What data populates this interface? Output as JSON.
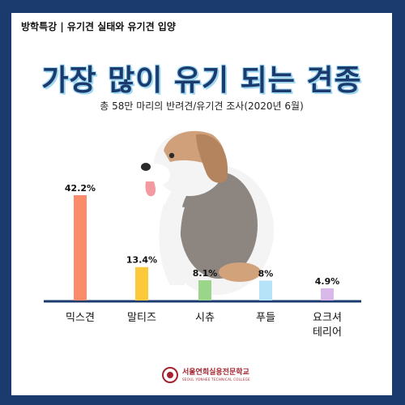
{
  "header": {
    "tag": "방학특강 | 유기견 실태와 유기견 입양"
  },
  "title": "가장 많이 유기 되는 견종",
  "subtitle": "총 58만 마리의 반려견/유기견 조사(2020년 6월)",
  "footer": {
    "school_ko": "서울연희실용전문학교",
    "school_en": "SEOUL YONHEE TECHNICAL COLLEGE"
  },
  "chart_data": {
    "type": "bar",
    "categories": [
      "믹스견",
      "말티즈",
      "시츄",
      "푸들",
      "요크셔\n테리어"
    ],
    "values": [
      42.2,
      13.4,
      8.1,
      8,
      4.9
    ],
    "value_labels": [
      "42.2%",
      "13.4%",
      "8.1%",
      "8%",
      "4.9%"
    ],
    "colors": [
      "#fb8c6b",
      "#fcc93b",
      "#9ad58a",
      "#b6e3f7",
      "#d9b8ea"
    ],
    "title": "가장 많이 유기 되는 견종",
    "ylim": [
      0,
      42.2
    ],
    "grid": false
  }
}
